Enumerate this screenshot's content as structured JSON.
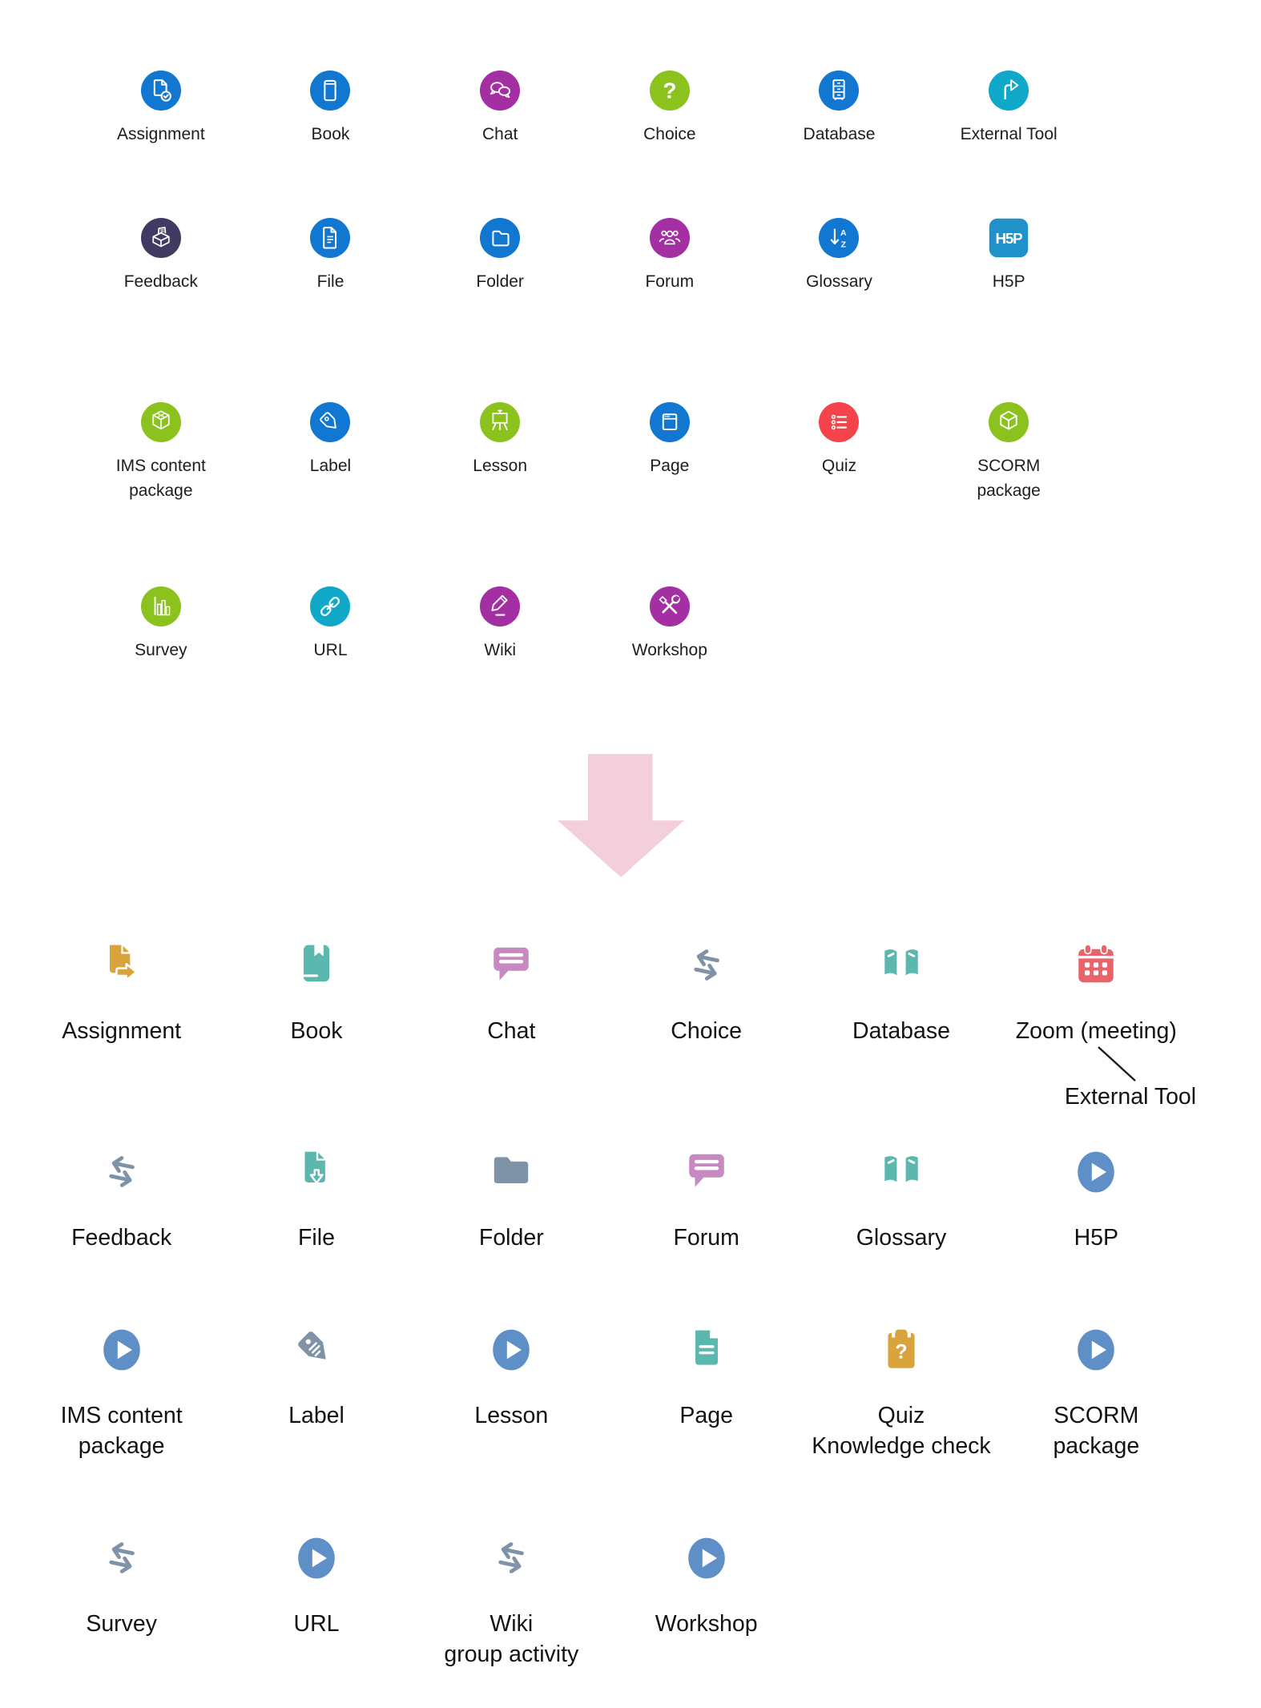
{
  "colors": {
    "blue": "#1177d1",
    "magenta": "#a32fa3",
    "green": "#8cc21d",
    "cyan": "#0fa8c9",
    "navy": "#413b63",
    "red": "#f4434a",
    "h5p_blue": "#2092c9",
    "amber": "#d9a43c",
    "teal": "#5cb8ae",
    "mauve": "#c689c1",
    "slate": "#7f93a7",
    "coral": "#e9636b",
    "steel": "#5f8fc7",
    "arrow_pink": "#f2cfdb",
    "label_dark": "#1d1d1f",
    "label_muted": "#c9cdd1"
  },
  "old_section": {
    "rows": [
      [
        {
          "id": "old-assignment",
          "label": "Assignment",
          "glyph": "doc-check",
          "color": "blue"
        },
        {
          "id": "old-book",
          "label": "Book",
          "glyph": "book",
          "color": "blue"
        },
        {
          "id": "old-chat",
          "label": "Chat",
          "glyph": "chat-bubbles",
          "color": "magenta"
        },
        {
          "id": "old-choice",
          "label": "Choice",
          "glyph": "question-mark",
          "color": "green"
        },
        {
          "id": "old-database",
          "label": "Database",
          "glyph": "drawers",
          "color": "blue"
        },
        {
          "id": "old-external-tool",
          "label": "External Tool",
          "glyph": "turn-arrow",
          "color": "cyan"
        }
      ],
      [
        {
          "id": "old-feedback",
          "label": "Feedback",
          "glyph": "ballot-box",
          "color": "navy"
        },
        {
          "id": "old-file",
          "label": "File",
          "glyph": "document-lines",
          "color": "blue"
        },
        {
          "id": "old-folder",
          "label": "Folder",
          "glyph": "folder",
          "color": "blue"
        },
        {
          "id": "old-forum",
          "label": "Forum",
          "glyph": "people-group",
          "color": "magenta"
        },
        {
          "id": "old-glossary",
          "label": "Glossary",
          "glyph": "sort-az",
          "color": "blue"
        },
        {
          "id": "old-h5p",
          "label": "H5P",
          "glyph": "h5p-logo",
          "color": "h5p_blue"
        }
      ],
      [
        {
          "id": "old-ims-content-package",
          "label": "IMS content\npackage",
          "glyph": "open-cube",
          "color": "green"
        },
        {
          "id": "old-label",
          "label": "Label",
          "glyph": "tag",
          "color": "blue"
        },
        {
          "id": "old-lesson",
          "label": "Lesson",
          "glyph": "easel",
          "color": "green"
        },
        {
          "id": "old-page",
          "label": "Page",
          "glyph": "browser-window",
          "color": "blue"
        },
        {
          "id": "old-quiz",
          "label": "Quiz",
          "glyph": "bullet-list",
          "color": "red"
        },
        {
          "id": "old-scorm-package",
          "label": "SCORM\npackage",
          "glyph": "cube",
          "color": "green"
        }
      ],
      [
        {
          "id": "old-survey",
          "label": "Survey",
          "glyph": "bar-chart",
          "color": "green"
        },
        {
          "id": "old-url",
          "label": "URL",
          "glyph": "chain-link",
          "color": "cyan"
        },
        {
          "id": "old-wiki",
          "label": "Wiki",
          "glyph": "pencil",
          "color": "magenta"
        },
        {
          "id": "old-workshop",
          "label": "Workshop",
          "glyph": "crossed-tools",
          "color": "magenta"
        }
      ]
    ]
  },
  "transition": {
    "arrow_icon": "down-arrow-icon",
    "arrow_color": "#f2cfdb"
  },
  "new_section": {
    "external_tool_callout": "External Tool",
    "rows": [
      [
        {
          "id": "new-assignment",
          "label": "Assignment",
          "glyph": "file-export",
          "color": "amber"
        },
        {
          "id": "new-book",
          "label": "Book",
          "glyph": "book-solid",
          "color": "teal"
        },
        {
          "id": "new-chat",
          "label": "Chat",
          "glyph": "comment-bubble",
          "color": "mauve",
          "muted": true
        },
        {
          "id": "new-choice",
          "label": "Choice",
          "glyph": "swap-arrows",
          "color": "slate"
        },
        {
          "id": "new-database",
          "label": "Database",
          "glyph": "open-book",
          "color": "teal"
        },
        {
          "id": "new-zoom-meeting",
          "label": "Zoom (meeting)",
          "glyph": "calendar",
          "color": "coral"
        }
      ],
      [
        {
          "id": "new-feedback",
          "label": "Feedback",
          "glyph": "swap-arrows",
          "color": "slate"
        },
        {
          "id": "new-file",
          "label": "File",
          "glyph": "file-download",
          "color": "teal"
        },
        {
          "id": "new-folder",
          "label": "Folder",
          "glyph": "folder-solid",
          "color": "slate"
        },
        {
          "id": "new-forum",
          "label": "Forum",
          "glyph": "comment-bubble",
          "color": "mauve"
        },
        {
          "id": "new-glossary",
          "label": "Glossary",
          "glyph": "open-book",
          "color": "teal"
        },
        {
          "id": "new-h5p",
          "label": "H5P",
          "glyph": "play-circle",
          "color": "steel"
        }
      ],
      [
        {
          "id": "new-ims-content-package",
          "label": "IMS content\npackage",
          "glyph": "play-circle",
          "color": "steel"
        },
        {
          "id": "new-label",
          "label": "Label",
          "glyph": "tag-solid",
          "color": "slate"
        },
        {
          "id": "new-lesson",
          "label": "Lesson",
          "glyph": "play-circle",
          "color": "steel"
        },
        {
          "id": "new-page",
          "label": "Page",
          "glyph": "page-lines",
          "color": "teal"
        },
        {
          "id": "new-quiz",
          "label": "Quiz\nKnowledge check",
          "glyph": "clipboard-question",
          "color": "amber"
        },
        {
          "id": "new-scorm-package",
          "label": "SCORM\npackage",
          "glyph": "play-circle",
          "color": "steel"
        }
      ],
      [
        {
          "id": "new-survey",
          "label": "Survey",
          "glyph": "swap-arrows",
          "color": "slate"
        },
        {
          "id": "new-url",
          "label": "URL",
          "glyph": "play-circle",
          "color": "steel"
        },
        {
          "id": "new-wiki",
          "label": "Wiki\ngroup activity",
          "glyph": "swap-arrows",
          "color": "slate"
        },
        {
          "id": "new-workshop",
          "label": "Workshop",
          "glyph": "play-circle",
          "color": "steel"
        }
      ]
    ]
  }
}
